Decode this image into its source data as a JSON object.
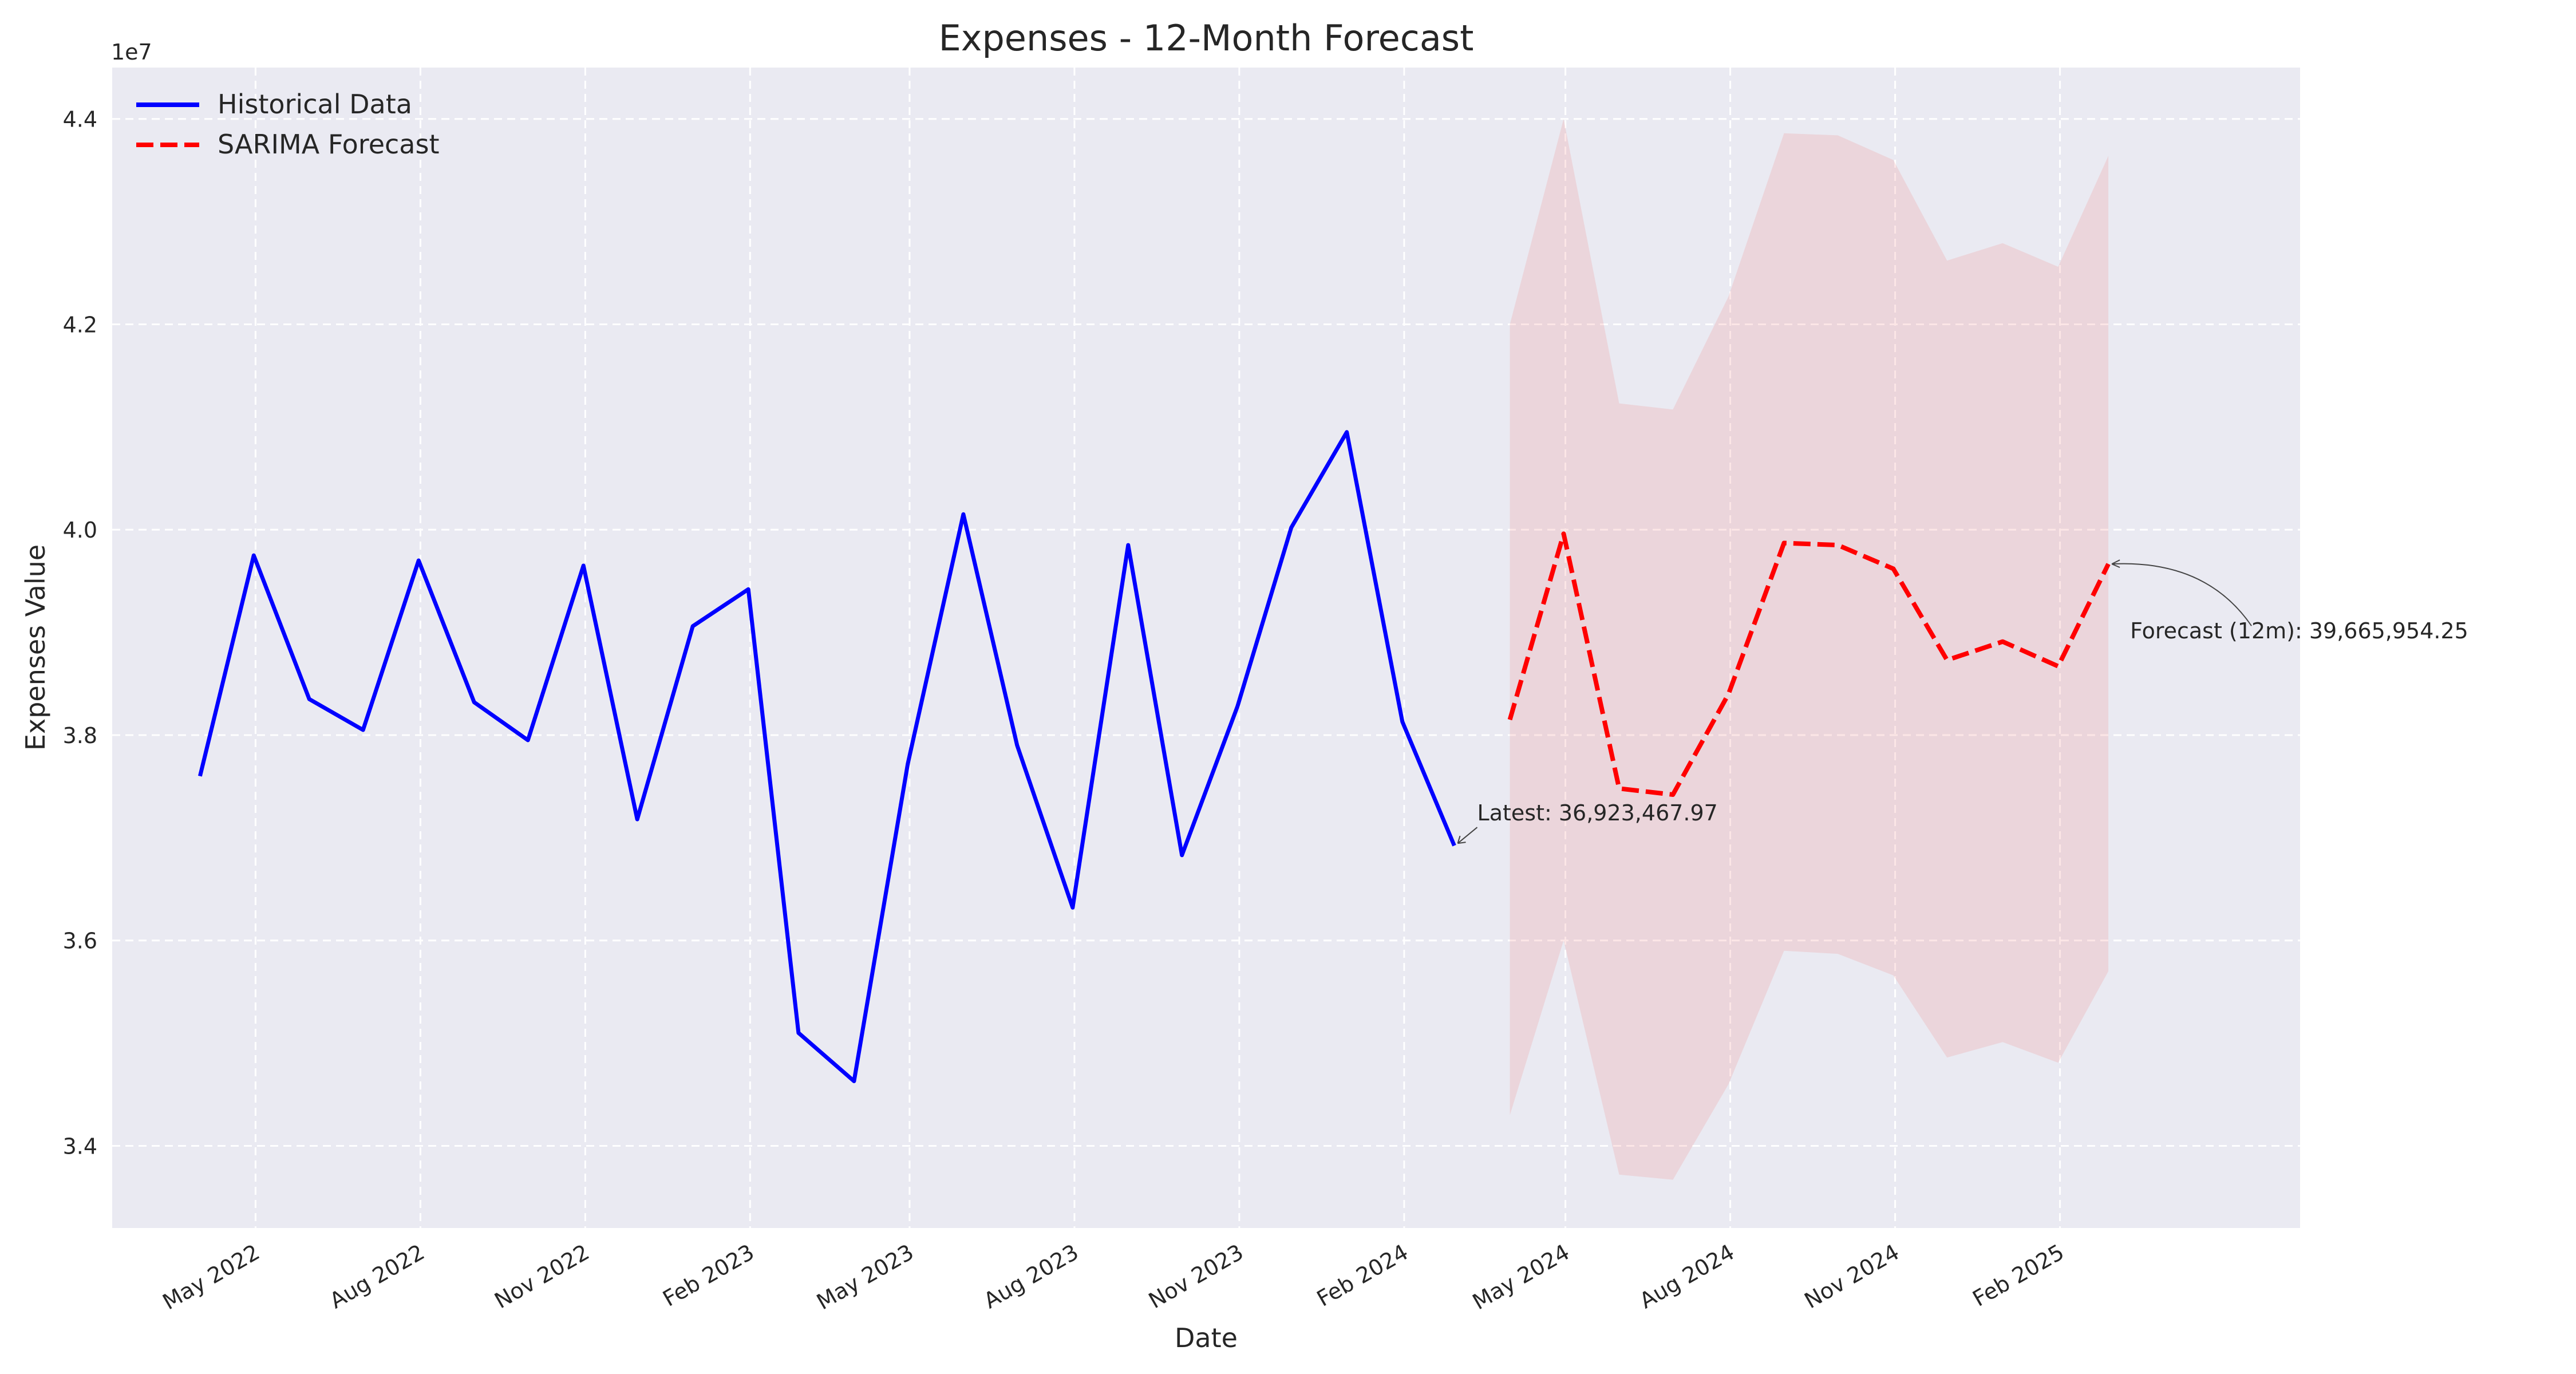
{
  "chart_data": {
    "type": "line",
    "title": "Expenses - 12-Month Forecast",
    "xlabel": "Date",
    "ylabel": "Expenses Value",
    "y_scale_label": "1e7",
    "ylim": [
      33200000,
      44500000
    ],
    "xlim": [
      "2022-02-10",
      "2025-06-15"
    ],
    "grid": true,
    "legend_position": "top-left",
    "x_ticks": [
      {
        "date": "2022-05-01",
        "label": "May 2022"
      },
      {
        "date": "2022-08-01",
        "label": "Aug 2022"
      },
      {
        "date": "2022-11-01",
        "label": "Nov 2022"
      },
      {
        "date": "2023-02-01",
        "label": "Feb 2023"
      },
      {
        "date": "2023-05-01",
        "label": "May 2023"
      },
      {
        "date": "2023-08-01",
        "label": "Aug 2023"
      },
      {
        "date": "2023-11-01",
        "label": "Nov 2023"
      },
      {
        "date": "2024-02-01",
        "label": "Feb 2024"
      },
      {
        "date": "2024-05-01",
        "label": "May 2024"
      },
      {
        "date": "2024-08-01",
        "label": "Aug 2024"
      },
      {
        "date": "2024-11-01",
        "label": "Nov 2024"
      },
      {
        "date": "2025-02-01",
        "label": "Feb 2025"
      }
    ],
    "y_ticks": [
      {
        "value": 34000000,
        "label": "3.4"
      },
      {
        "value": 36000000,
        "label": "3.6"
      },
      {
        "value": 38000000,
        "label": "3.8"
      },
      {
        "value": 40000000,
        "label": "4.0"
      },
      {
        "value": 42000000,
        "label": "4.2"
      },
      {
        "value": 44000000,
        "label": "4.4"
      }
    ],
    "series": [
      {
        "name": "Historical Data",
        "color": "#0000ff",
        "style": "solid",
        "x": [
          "2022-03-31",
          "2022-04-30",
          "2022-05-31",
          "2022-06-30",
          "2022-07-31",
          "2022-08-31",
          "2022-09-30",
          "2022-10-31",
          "2022-11-30",
          "2022-12-31",
          "2023-01-31",
          "2023-02-28",
          "2023-03-31",
          "2023-04-30",
          "2023-05-31",
          "2023-06-30",
          "2023-07-31",
          "2023-08-31",
          "2023-09-30",
          "2023-10-31",
          "2023-11-30",
          "2023-12-31",
          "2024-01-31",
          "2024-02-29"
        ],
        "y": [
          37600000,
          39750000,
          38350000,
          38050000,
          39700000,
          38320000,
          37950000,
          39650000,
          37180000,
          39060000,
          39420000,
          35100000,
          34630000,
          37720000,
          40150000,
          37900000,
          36320000,
          39850000,
          36830000,
          38280000,
          40020000,
          40950000,
          38130000,
          36923467.97
        ]
      },
      {
        "name": "SARIMA Forecast",
        "color": "#ff0000",
        "style": "dashed",
        "x": [
          "2024-03-31",
          "2024-04-30",
          "2024-05-31",
          "2024-06-30",
          "2024-07-31",
          "2024-08-31",
          "2024-09-30",
          "2024-10-31",
          "2024-11-30",
          "2024-12-31",
          "2025-01-31",
          "2025-02-28"
        ],
        "y": [
          38150000,
          39960000,
          37480000,
          37420000,
          38400000,
          39870000,
          39850000,
          39620000,
          38730000,
          38910000,
          38670000,
          39665954.25
        ]
      }
    ],
    "confidence_band": {
      "color": "#f08080",
      "opacity": 0.2,
      "x": [
        "2024-03-31",
        "2024-04-30",
        "2024-05-31",
        "2024-06-30",
        "2024-07-31",
        "2024-08-31",
        "2024-09-30",
        "2024-10-31",
        "2024-11-30",
        "2024-12-31",
        "2025-01-31",
        "2025-02-28"
      ],
      "lower": [
        34300000,
        36000000,
        33720000,
        33670000,
        34600000,
        35900000,
        35870000,
        35660000,
        34860000,
        35010000,
        34810000,
        35700000
      ],
      "upper": [
        42000000,
        44000000,
        41230000,
        41170000,
        42270000,
        43860000,
        43840000,
        43600000,
        42620000,
        42790000,
        42560000,
        43640000
      ]
    },
    "annotations": [
      {
        "text": "Latest: 36,923,467.97",
        "x": "2024-02-29",
        "y": 36923467.97
      },
      {
        "text": "Forecast (12m): 39,665,954.25",
        "x": "2025-02-28",
        "y": 39665954.25
      }
    ]
  }
}
